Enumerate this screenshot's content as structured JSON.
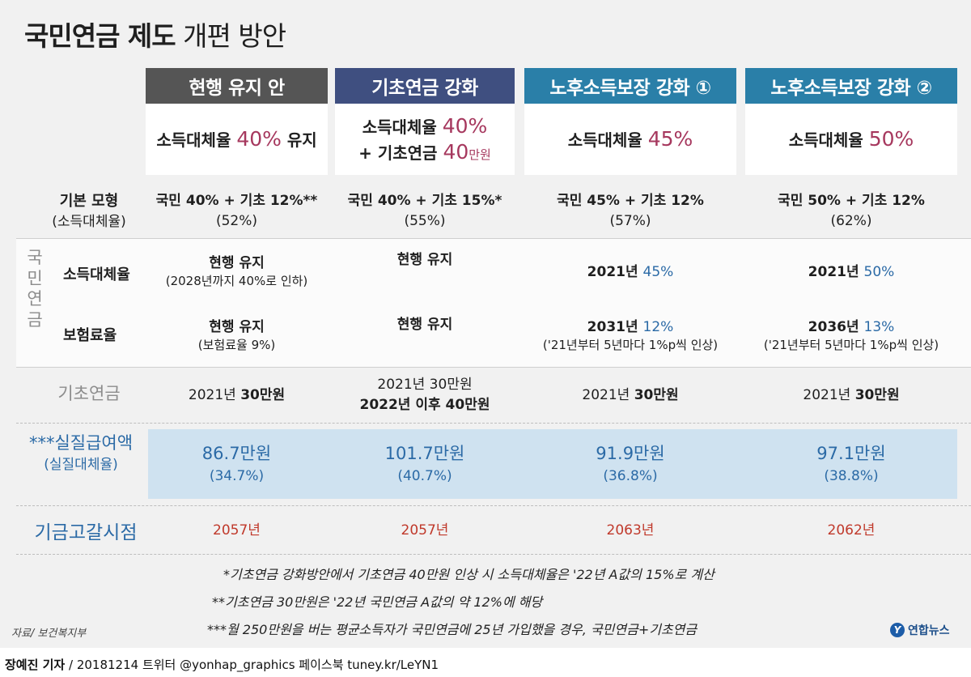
{
  "title": {
    "bold": "국민연금 제도",
    "light": "개편 방안"
  },
  "columns": [
    {
      "header": "현행 유지 안",
      "color": "#555555",
      "sub1_pre": "소득대체율 ",
      "sub1_red": "40%",
      "sub1_post": " 유지",
      "basic1": "국민 40% + 기초 12%**",
      "basic2": "(52%)",
      "income_main": "현행 유지",
      "income_blue": "",
      "income_sub": "(2028년까지 40%로 인하)",
      "ins_main": "현행 유지",
      "ins_blue": "",
      "ins_sub": "(보험료율 9%)",
      "bp1_pre": "2021년 ",
      "bp1_bold": "30만원",
      "bp2": "",
      "real_val": "86.7만원",
      "real_sub": "(34.7%)",
      "fund": "2057년"
    },
    {
      "header": "기초연금 강화",
      "color": "#3f4f80",
      "sub1_pre": "소득대체율 ",
      "sub1_red": "40%",
      "sub1_post": "",
      "sub2_pre": "+ 기초연금 ",
      "sub2_red": "40",
      "sub2_small": "만원",
      "basic1": "국민 40% + 기초 15%*",
      "basic2": "(55%)",
      "income_main": "현행 유지",
      "income_blue": "",
      "income_sub": "",
      "ins_main": "현행 유지",
      "ins_blue": "",
      "ins_sub": "",
      "bp1_pre": "2021년 30만원",
      "bp1_bold": "",
      "bp2": "2022년 이후 40만원",
      "real_val": "101.7만원",
      "real_sub": "(40.7%)",
      "fund": "2057년"
    },
    {
      "header": "노후소득보장 강화 ①",
      "color": "#2a7fa8",
      "sub1_pre": "소득대체율 ",
      "sub1_red": "45%",
      "sub1_post": "",
      "basic1": "국민 45% + 기초 12%",
      "basic2": "(57%)",
      "income_main": "2021년 ",
      "income_blue": "45%",
      "income_sub": "",
      "ins_main": "2031년 ",
      "ins_blue": "12%",
      "ins_sub": "('21년부터 5년마다 1%p씩 인상)",
      "bp1_pre": "2021년 ",
      "bp1_bold": "30만원",
      "bp2": "",
      "real_val": "91.9만원",
      "real_sub": "(36.8%)",
      "fund": "2063년"
    },
    {
      "header": "노후소득보장 강화 ②",
      "color": "#2a7fa8",
      "sub1_pre": "소득대체율 ",
      "sub1_red": "50%",
      "sub1_post": "",
      "basic1": "국민 50% + 기초 12%",
      "basic2": "(62%)",
      "income_main": "2021년 ",
      "income_blue": "50%",
      "income_sub": "",
      "ins_main": "2036년 ",
      "ins_blue": "13%",
      "ins_sub": "('21년부터 5년마다 1%p씩 인상)",
      "bp1_pre": "2021년 ",
      "bp1_bold": "30만원",
      "bp2": "",
      "real_val": "97.1만원",
      "real_sub": "(38.8%)",
      "fund": "2062년"
    }
  ],
  "labels": {
    "basic_model": "기본 모형",
    "basic_model_sub": "(소득대체율)",
    "pension_vertical": [
      "국",
      "민",
      "연",
      "금"
    ],
    "income_rate": "소득대체율",
    "insurance_rate": "보험료율",
    "basic_pension": "기초연금",
    "real_benefit": "***실질급여액",
    "real_benefit_sub": "(실질대체율)",
    "fund_depletion": "기금고갈시점"
  },
  "notes": [
    "*기초연금 강화방안에서 기초연금 40만원 인상 시 소득대체율은 '22년 A값의 15%로 계산",
    "**기초연금 30만원은 '22년 국민연금 A값의 약 12%에 해당",
    "***월 250만원을 버는 평균소득자가 국민연금에 25년 가입했을 경우, 국민연금+기초연금"
  ],
  "source": "자료/ 보건복지부",
  "logo": "연합뉴스",
  "footer": {
    "reporter": "장예진 기자",
    "rest": " / 20181214 트위터 @yonhap_graphics  페이스북 tuney.kr/LeYN1"
  }
}
